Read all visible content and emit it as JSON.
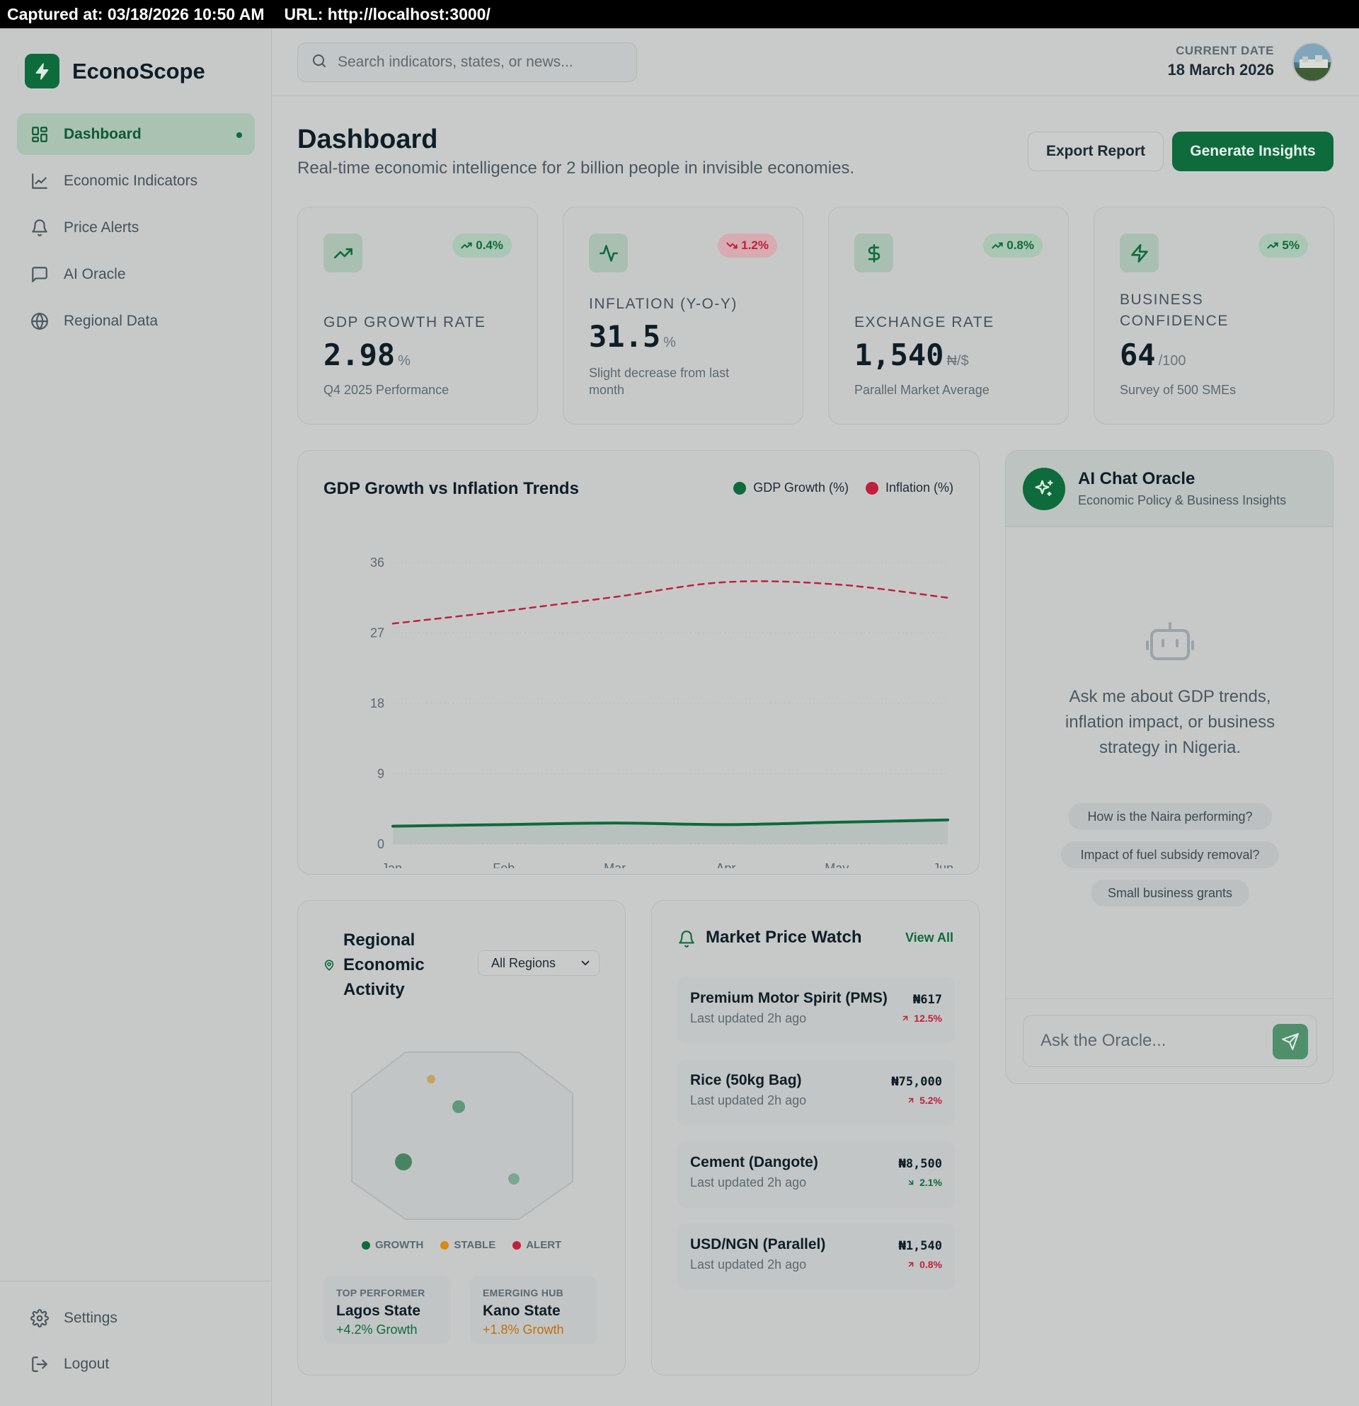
{
  "capture": {
    "captured_at": "Captured at: 03/18/2026 10:50 AM",
    "url": "URL: http://localhost:3000/"
  },
  "brand": {
    "name": "EconoScope"
  },
  "sidebar": {
    "items": [
      {
        "label": "Dashboard",
        "icon": "dashboard-icon",
        "active": true
      },
      {
        "label": "Economic Indicators",
        "icon": "line-chart-icon"
      },
      {
        "label": "Price Alerts",
        "icon": "bell-icon"
      },
      {
        "label": "AI Oracle",
        "icon": "chat-icon"
      },
      {
        "label": "Regional Data",
        "icon": "globe-icon"
      }
    ],
    "bottom": [
      {
        "label": "Settings",
        "icon": "gear-icon"
      },
      {
        "label": "Logout",
        "icon": "logout-icon"
      }
    ]
  },
  "topbar": {
    "search_placeholder": "Search indicators, states, or news...",
    "date_label": "CURRENT DATE",
    "date_value": "18 March 2026"
  },
  "header": {
    "title": "Dashboard",
    "subtitle": "Real-time economic intelligence for 2 billion people in invisible economies.",
    "export_label": "Export Report",
    "generate_label": "Generate Insights"
  },
  "kpis": [
    {
      "label": "GDP Growth Rate",
      "value": "2.98",
      "unit": "%",
      "note": "Q4 2025 Performance",
      "change": "0.4%",
      "direction": "up",
      "icon": "trending-up-icon"
    },
    {
      "label": "Inflation (Y-o-Y)",
      "value": "31.5",
      "unit": "%",
      "note": "Slight decrease from last month",
      "change": "1.2%",
      "direction": "down",
      "icon": "activity-icon"
    },
    {
      "label": "Exchange Rate",
      "value": "1,540",
      "unit": "₦/$",
      "note": "Parallel Market Average",
      "change": "0.8%",
      "direction": "up",
      "icon": "dollar-icon"
    },
    {
      "label": "Business Confidence",
      "value": "64",
      "unit": "/100",
      "note": "Survey of 500 SMEs",
      "change": "5%",
      "direction": "up",
      "icon": "bolt-icon"
    }
  ],
  "chart": {
    "title": "GDP Growth vs Inflation Trends"
  },
  "chart_data": {
    "type": "line",
    "title": "GDP Growth vs Inflation Trends",
    "x": [
      "Jan",
      "Feb",
      "Mar",
      "Apr",
      "May",
      "Jun"
    ],
    "ylim": [
      0,
      36
    ],
    "yticks": [
      0,
      9,
      18,
      27,
      36
    ],
    "grid": true,
    "legend_position": "top-right",
    "series": [
      {
        "name": "GDP Growth (%)",
        "values": [
          2.3,
          2.5,
          2.7,
          2.5,
          2.8,
          3.1
        ],
        "color": "#0e6b3c",
        "style": "solid"
      },
      {
        "name": "Inflation (%)",
        "values": [
          28.2,
          29.8,
          31.6,
          33.5,
          33.2,
          31.5
        ],
        "color": "#c0203d",
        "style": "dashed"
      }
    ]
  },
  "oracle": {
    "title": "AI Chat Oracle",
    "subtitle": "Economic Policy & Business Insights",
    "prompt": "Ask me about GDP trends, inflation impact, or business strategy in Nigeria.",
    "suggestions": [
      "How is the Naira performing?",
      "Impact of fuel subsidy removal?",
      "Small business grants"
    ],
    "input_placeholder": "Ask the Oracle..."
  },
  "regional": {
    "title": "Regional Economic Activity",
    "filter_value": "All Regions",
    "legend": [
      "GROWTH",
      "STABLE",
      "ALERT"
    ],
    "top": {
      "label": "TOP PERFORMER",
      "name": "Lagos State",
      "value": "+4.2% Growth"
    },
    "emerging": {
      "label": "EMERGING HUB",
      "name": "Kano State",
      "value": "+1.8% Growth"
    },
    "colors": {
      "growth": "#0e6b3c",
      "stable": "#d68a13",
      "alert": "#c0203d"
    }
  },
  "market": {
    "title": "Market Price Watch",
    "view_all": "View All",
    "items": [
      {
        "name": "Premium Motor Spirit (PMS)",
        "updated": "Last updated 2h ago",
        "price": "₦617",
        "change": "12.5%",
        "direction": "up"
      },
      {
        "name": "Rice (50kg Bag)",
        "updated": "Last updated 2h ago",
        "price": "₦75,000",
        "change": "5.2%",
        "direction": "up"
      },
      {
        "name": "Cement (Dangote)",
        "updated": "Last updated 2h ago",
        "price": "₦8,500",
        "change": "2.1%",
        "direction": "down"
      },
      {
        "name": "USD/NGN (Parallel)",
        "updated": "Last updated 2h ago",
        "price": "₦1,540",
        "change": "0.8%",
        "direction": "up"
      }
    ]
  }
}
